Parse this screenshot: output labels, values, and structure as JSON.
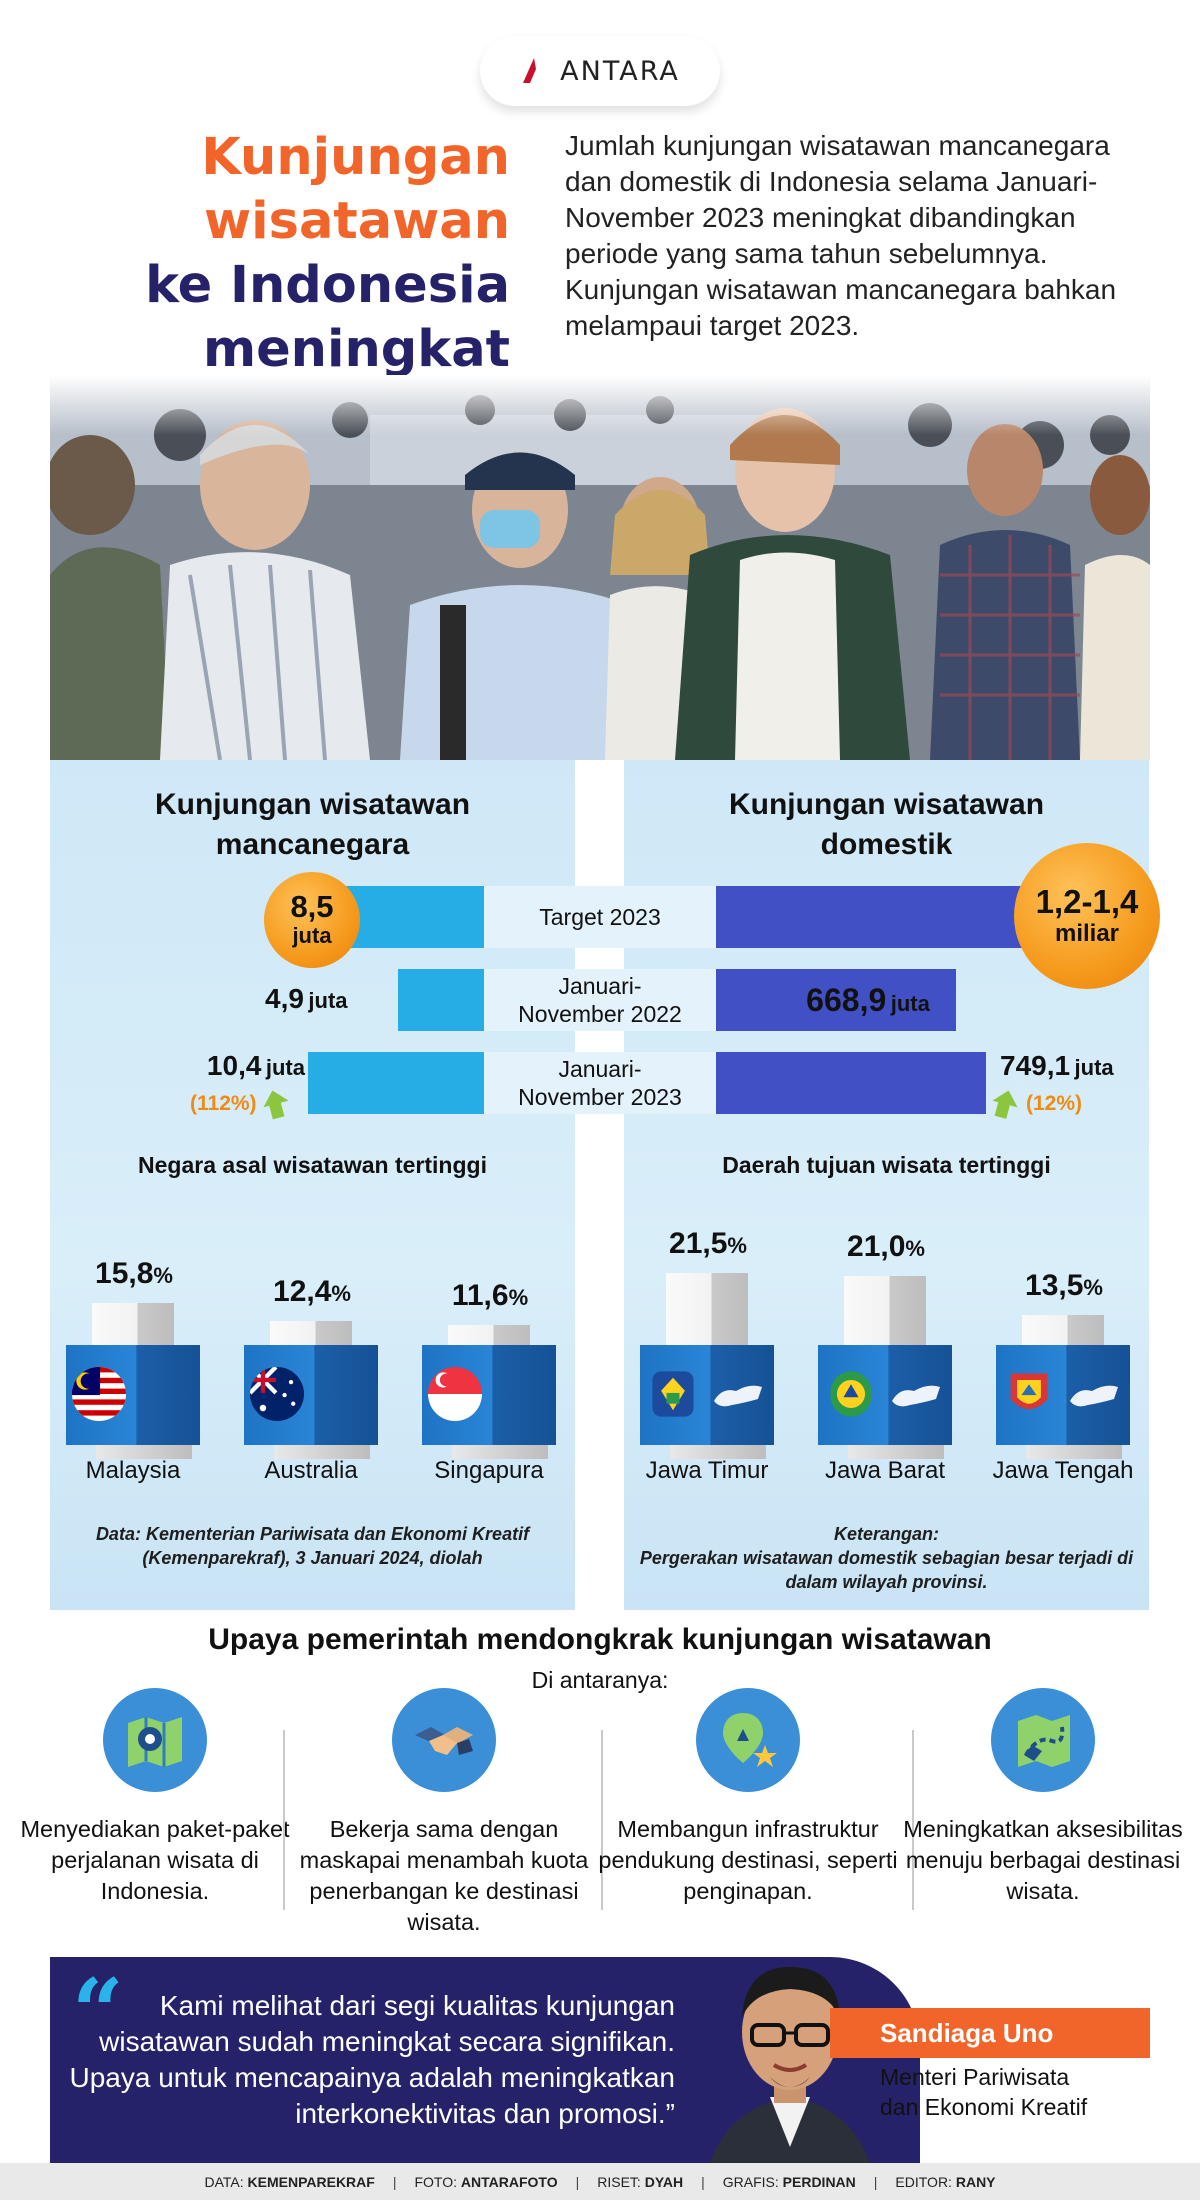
{
  "brand": {
    "logo_text": "ANTARA"
  },
  "header": {
    "title_line1": "Kunjungan",
    "title_line2": "wisatawan",
    "title_line3": "ke Indonesia",
    "title_line4": "meningkat",
    "intro": "Jumlah kunjungan wisatawan mancanegara dan domestik di Indonesia selama Januari-November 2023 meningkat dibandingkan periode yang sama tahun sebelumnya. Kunjungan wisatawan mancanegara bahkan melampaui target 2023."
  },
  "comparison": {
    "left_title_1": "Kunjungan wisatawan",
    "left_title_2": "mancanegara",
    "right_title_1": "Kunjungan wisatawan",
    "right_title_2": "domestik",
    "rows": [
      {
        "label_1": "Target 2023",
        "label_2": "",
        "left_value": "8,5",
        "left_unit": "juta",
        "right_value": "1,2-1,4",
        "right_unit": "miliar",
        "left_level": 1.0,
        "right_level": 1.0
      },
      {
        "label_1": "Januari-",
        "label_2": "November 2022",
        "left_value": "4,9",
        "left_unit": "juta",
        "right_value": "668,9",
        "right_unit": "juta",
        "left_level": 0.58,
        "right_level": 0.74
      },
      {
        "label_1": "Januari-",
        "label_2": "November 2023",
        "left_value": "10,4",
        "left_unit": "juta",
        "right_value": "749,1",
        "right_unit": "juta",
        "left_level": 1.0,
        "right_level": 0.83
      }
    ],
    "left_growth": "(112%)",
    "right_growth": "(12%)"
  },
  "origin": {
    "title": "Negara asal wisatawan tertinggi",
    "items": [
      {
        "value": "15,8",
        "unit": "%",
        "label": "Malaysia",
        "share": 15.8
      },
      {
        "value": "12,4",
        "unit": "%",
        "label": "Australia",
        "share": 12.4
      },
      {
        "value": "11,6",
        "unit": "%",
        "label": "Singapura",
        "share": 11.6
      }
    ],
    "note": "Data: Kementerian Pariwisata dan Ekonomi Kreatif (Kemenparekraf), 3 Januari 2024, diolah"
  },
  "destination": {
    "title": "Daerah tujuan wisata tertinggi",
    "items": [
      {
        "value": "21,5",
        "unit": "%",
        "label": "Jawa Timur",
        "share": 21.5
      },
      {
        "value": "21,0",
        "unit": "%",
        "label": "Jawa Barat",
        "share": 21.0
      },
      {
        "value": "13,5",
        "unit": "%",
        "label": "Jawa Tengah",
        "share": 13.5
      }
    ],
    "note_title": "Keterangan:",
    "note": "Pergerakan wisatawan domestik sebagian besar terjadi di dalam wilayah provinsi."
  },
  "upaya": {
    "title": "Upaya pemerintah mendongkrak kunjungan wisatawan",
    "subtitle": "Di antaranya:",
    "items": [
      {
        "text": "Menyediakan paket-paket perjalanan wisata di Indonesia.",
        "icon": "map-pin-icon"
      },
      {
        "text": "Bekerja sama dengan maskapai menambah kuota penerbangan ke destinasi wisata.",
        "icon": "handshake-icon"
      },
      {
        "text": "Membangun infrastruktur pendukung destinasi, seperti penginapan.",
        "icon": "location-star-icon"
      },
      {
        "text": "Meningkatkan aksesibilitas menuju berbagai destinasi wisata.",
        "icon": "map-route-icon"
      }
    ]
  },
  "quote": {
    "text": "Kami melihat dari segi kualitas kunjungan wisatawan sudah meningkat secara signifikan. Upaya untuk mencapainya adalah meningkatkan interkonektivitas dan promosi.”",
    "name": "Sandiaga Uno",
    "role_1": "Menteri Pariwisata",
    "role_2": "dan Ekonomi Kreatif"
  },
  "footer": {
    "data_label": "DATA:",
    "data_value": "KEMENPAREKRAF",
    "foto_label": "FOTO:",
    "foto_value": "ANTARAFOTO",
    "riset_label": "RISET:",
    "riset_value": "DYAH",
    "grafis_label": "GRAFIS:",
    "grafis_value": "PERDINAN",
    "editor_label": "EDITOR:",
    "editor_value": "RANY"
  },
  "colors": {
    "orange": "#f2652a",
    "navy": "#25226a",
    "cyan": "#27ade5",
    "blue": "#4150c4",
    "amber": "#f59a1c"
  }
}
